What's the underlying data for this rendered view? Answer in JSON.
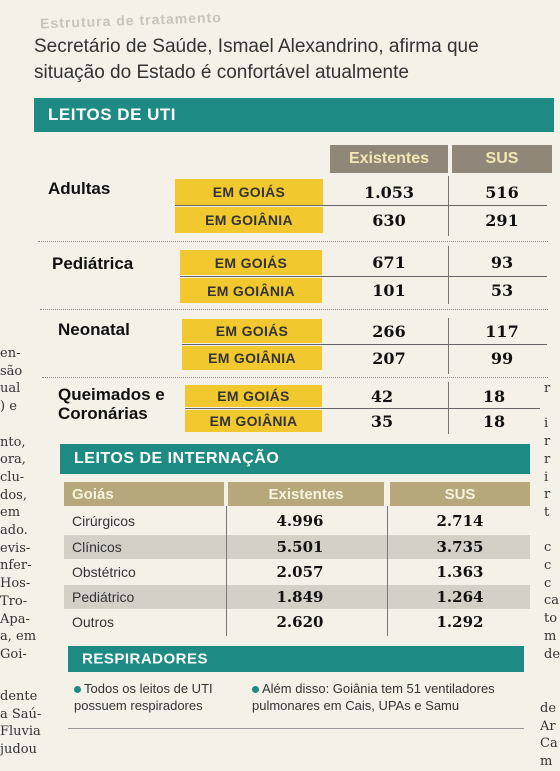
{
  "header": {
    "strip": "Estrutura de tratamento",
    "headline": "Secretário de Saúde, Ismael Alexandrino, afirma que situação do Estado é confortável atualmente"
  },
  "uti": {
    "title": "LEITOS DE UTI",
    "col_existentes": "Existentes",
    "col_sus": "SUS",
    "groups": [
      {
        "name": "Adultas",
        "rows": [
          {
            "loc": "EM GOIÁS",
            "existentes": "1.053",
            "sus": "516"
          },
          {
            "loc": "EM GOIÂNIA",
            "existentes": "630",
            "sus": "291"
          }
        ]
      },
      {
        "name": "Pediátrica",
        "rows": [
          {
            "loc": "EM GOIÁS",
            "existentes": "671",
            "sus": "93"
          },
          {
            "loc": "EM GOIÂNIA",
            "existentes": "101",
            "sus": "53"
          }
        ]
      },
      {
        "name": "Neonatal",
        "rows": [
          {
            "loc": "EM GOIÁS",
            "existentes": "266",
            "sus": "117"
          },
          {
            "loc": "EM GOIÂNIA",
            "existentes": "207",
            "sus": "99"
          }
        ]
      },
      {
        "name": "Queimados e Coronárias",
        "rows": [
          {
            "loc": "EM GOIÁS",
            "existentes": "42",
            "sus": "18"
          },
          {
            "loc": "EM GOIÂNIA",
            "existentes": "35",
            "sus": "18"
          }
        ]
      }
    ]
  },
  "internacao": {
    "title": "LEITOS DE INTERNAÇÃO",
    "col_goias": "Goiás",
    "col_existentes": "Existentes",
    "col_sus": "SUS",
    "rows": [
      {
        "name": "Cirúrgicos",
        "existentes": "4.996",
        "sus": "2.714"
      },
      {
        "name": "Clínicos",
        "existentes": "5.501",
        "sus": "3.735"
      },
      {
        "name": "Obstétrico",
        "existentes": "2.057",
        "sus": "1.363"
      },
      {
        "name": "Pediátrico",
        "existentes": "1.849",
        "sus": "1.264"
      },
      {
        "name": "Outros",
        "existentes": "2.620",
        "sus": "1.292"
      }
    ]
  },
  "respiradores": {
    "title": "RESPIRADORES",
    "bullet1": "Todos os leitos de UTI possuem respiradores",
    "bullet2": "Além disso: Goiânia tem 51 ventiladores pulmonares em Cais, UPAs e Samu"
  },
  "side_text": {
    "left": [
      "en-",
      "são",
      "ual",
      ") e",
      "",
      "nto,",
      "ora,",
      "clu-",
      "dos,",
      "em",
      "ado.",
      "evis-",
      "nfer-",
      "Hos-",
      "Tro-",
      "Apa-",
      "a, em",
      "Goi-"
    ],
    "right": [
      "r",
      "",
      "i",
      "r",
      "r",
      "i",
      "r",
      "t",
      "",
      "c",
      "c",
      "c",
      "ca",
      "to",
      "m",
      "de"
    ],
    "bottom_left": [
      "dente",
      "a Saú-",
      "Fluvia",
      "judou"
    ],
    "bottom_right": [
      "de",
      "Ar",
      "Ca",
      "m"
    ]
  }
}
